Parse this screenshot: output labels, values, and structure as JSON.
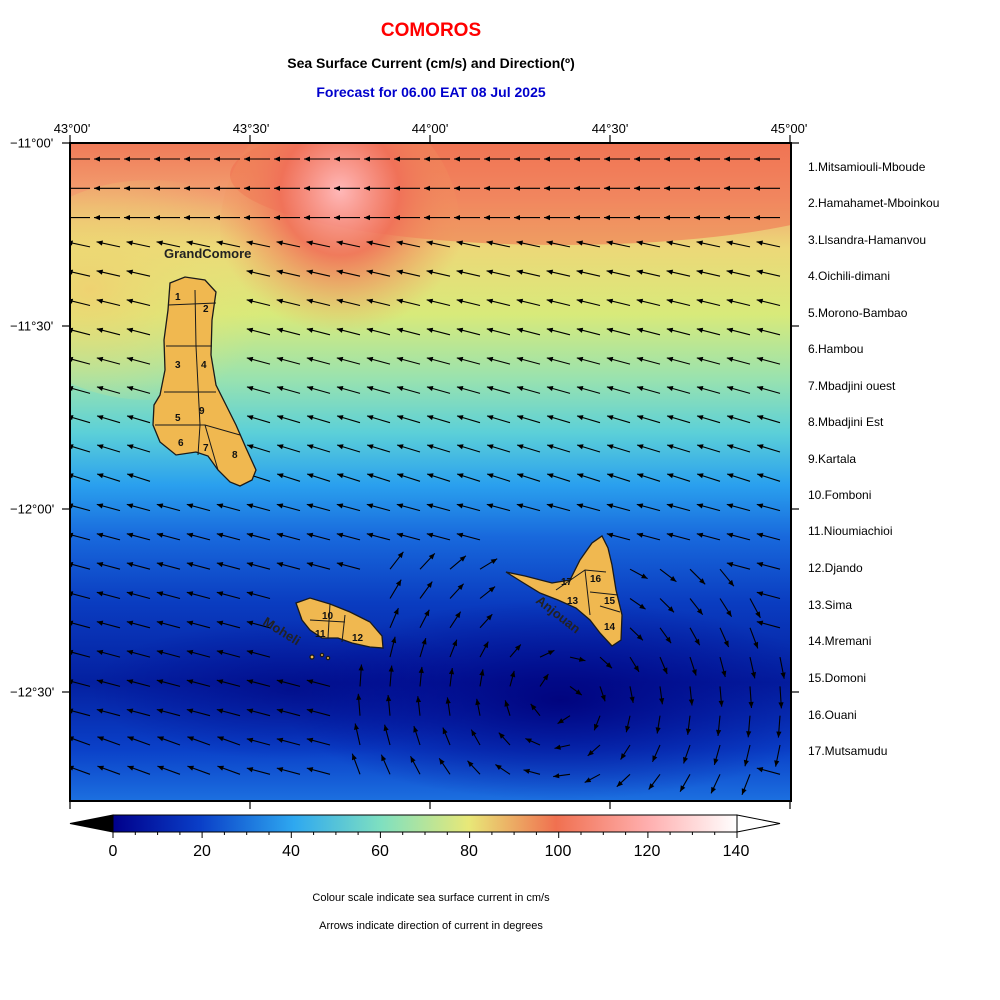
{
  "header": {
    "title": "COMOROS",
    "subtitle": "Sea Surface Current (cm/s) and Direction(º)",
    "forecast": "Forecast for  06.00 EAT 08 Jul 2025"
  },
  "axes": {
    "lon_ticks": [
      "43°00'",
      "43°30'",
      "44°00'",
      "44°30'",
      "45°00'"
    ],
    "lat_ticks": [
      "−11°00'",
      "−11°30'",
      "−12°00'",
      "−12°30'"
    ]
  },
  "islands": [
    {
      "name": "GrandComore"
    },
    {
      "name": "Moheli"
    },
    {
      "name": "Anjouan"
    }
  ],
  "region_numbers": [
    "1",
    "2",
    "3",
    "4",
    "5",
    "6",
    "7",
    "8",
    "9",
    "10",
    "11",
    "12",
    "13",
    "14",
    "15",
    "16",
    "17"
  ],
  "legend": [
    "1.Mitsamiouli-Mboude",
    "2.Hamahamet-Mboinkou",
    "3.Llsandra-Hamanvou",
    "4.Oichili-dimani",
    "5.Morono-Bambao",
    "6.Hambou",
    "7.Mbadjini ouest",
    "8.Mbadjini Est",
    "9.Kartala",
    "10.Fomboni",
    "11.Nioumiachioi",
    "12.Djando",
    "13.Sima",
    "14.Mremani",
    "15.Domoni",
    "16.Ouani",
    "17.Mutsamudu"
  ],
  "colorbar": {
    "labels": [
      "0",
      "20",
      "40",
      "60",
      "80",
      "100",
      "120",
      "140"
    ],
    "colors": [
      "#00008b",
      "#0a3fc8",
      "#2ea8f0",
      "#7fe0c0",
      "#e8e878",
      "#f07050",
      "#ffb0b0",
      "#ffffff"
    ]
  },
  "notes": {
    "colour": "Colour scale indicate sea surface current in cm/s",
    "arrows": "Arrows indicate direction of current in degrees"
  }
}
